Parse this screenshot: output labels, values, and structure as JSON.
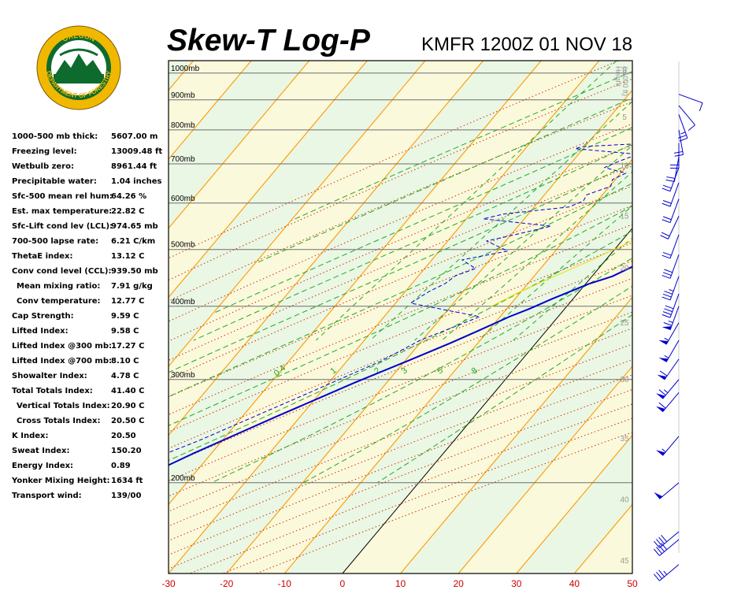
{
  "header": {
    "title": "Skew-T Log-P",
    "subtitle": "KMFR 1200Z 01 NOV 18",
    "logo_text_top": "OREGON",
    "logo_text_bottom": "DEPARTMENT OF FORESTRY"
  },
  "indices": [
    {
      "label": "1000-500 mb thick:",
      "value": "5607.00 m"
    },
    {
      "label": "Freezing level:",
      "value": "13009.48 ft"
    },
    {
      "label": "Wetbulb zero:",
      "value": "8961.44 ft"
    },
    {
      "label": "Precipitable water:",
      "value": "1.04 inches"
    },
    {
      "label": "Sfc-500 mean rel hum:",
      "value": "64.26 %"
    },
    {
      "label": "Est. max temperature:",
      "value": "22.82 C"
    },
    {
      "label": "Sfc-Lift cond lev (LCL):",
      "value": "974.65 mb"
    },
    {
      "label": "700-500 lapse rate:",
      "value": "6.21 C/km"
    },
    {
      "label": "ThetaE index:",
      "value": "13.12 C"
    },
    {
      "label": "Conv cond level (CCL):",
      "value": "939.50 mb"
    },
    {
      "label": "Mean mixing ratio:",
      "value": "7.91 g/kg",
      "indent": true
    },
    {
      "label": "Conv temperature:",
      "value": "12.77 C",
      "indent": true
    },
    {
      "label": "Cap Strength:",
      "value": "9.59 C"
    },
    {
      "label": "Lifted Index:",
      "value": "9.58 C"
    },
    {
      "label": "Lifted Index @300 mb:",
      "value": "17.27 C"
    },
    {
      "label": "Lifted Index @700 mb:",
      "value": "8.10 C"
    },
    {
      "label": "Showalter Index:",
      "value": "4.78 C"
    },
    {
      "label": "Total Totals Index:",
      "value": "41.40 C"
    },
    {
      "label": "Vertical Totals Index:",
      "value": "20.90 C",
      "indent": true
    },
    {
      "label": "Cross Totals Index:",
      "value": "20.50 C",
      "indent": true
    },
    {
      "label": "K Index:",
      "value": "20.50"
    },
    {
      "label": "Sweat Index:",
      "value": "150.20"
    },
    {
      "label": "Energy Index:",
      "value": "0.89"
    },
    {
      "label": "Yonker Mixing Height:",
      "value": "1634 ft"
    },
    {
      "label": "Transport wind:",
      "value": "139/00"
    }
  ],
  "chart_data": {
    "type": "line",
    "xlim": [
      -30,
      50
    ],
    "ylim_mb": [
      1050,
      140
    ],
    "x_ticks": [
      -30,
      -20,
      -10,
      0,
      10,
      20,
      30,
      40,
      50
    ],
    "pressure_levels": [
      1000,
      900,
      800,
      700,
      600,
      500,
      400,
      300,
      200
    ],
    "pressure_label_suffix": "mb",
    "height_axis_label": "Height\n(x1000 ft)",
    "height_ticks": [
      0,
      5,
      10,
      15,
      20,
      25,
      30,
      35,
      40,
      45,
      50
    ],
    "mixing_ratio_labels": [
      "0.4",
      "1",
      "2",
      "3",
      "5",
      "8"
    ],
    "mixing_ratio_values": [
      0.4,
      1,
      2,
      3,
      5,
      8
    ],
    "colors": {
      "temperature": "#0000cc",
      "dewpoint": "#0000cc",
      "parcel": "#e8e000",
      "isotherm": "#ff9900",
      "dry_adiabat": "#cc3300",
      "moist_adiabat": "#22aa22",
      "band_a": "#eaf7e4",
      "band_b": "#fbf9dc",
      "axis_tick_label": "#cc0000",
      "height_label": "#999999"
    },
    "series": [
      {
        "kind": "temperature",
        "points": [
          [
            999,
            15.0
          ],
          [
            960,
            15.6
          ],
          [
            935,
            17.1
          ],
          [
            920,
            17.9
          ],
          [
            895,
            20.6
          ],
          [
            876,
            21.6
          ],
          [
            859,
            20.8
          ],
          [
            836,
            19.2
          ],
          [
            815,
            19.4
          ],
          [
            790,
            19.0
          ],
          [
            775,
            18.4
          ],
          [
            750,
            21.3
          ],
          [
            730,
            24.5
          ],
          [
            711,
            24.7
          ],
          [
            689,
            24.7
          ],
          [
            661,
            23.0
          ],
          [
            636,
            21.5
          ],
          [
            612,
            19.6
          ],
          [
            593,
            18.1
          ],
          [
            566,
            15.9
          ],
          [
            548,
            13.9
          ],
          [
            517,
            10.9
          ],
          [
            494,
            8.1
          ],
          [
            470,
            5.9
          ],
          [
            450,
            3.5
          ],
          [
            437,
            0.6
          ],
          [
            412,
            -3.6
          ],
          [
            396,
            -6.1
          ],
          [
            384,
            -8.4
          ],
          [
            363,
            -11.8
          ],
          [
            346,
            -14.8
          ],
          [
            322,
            -19.7
          ],
          [
            296,
            -25.6
          ],
          [
            259,
            -34.2
          ],
          [
            224,
            -43.2
          ],
          [
            197,
            -50.4
          ],
          [
            162,
            -60.3
          ],
          [
            152,
            -52.6
          ],
          [
            145,
            -49.6
          ]
        ]
      },
      {
        "kind": "dewpoint",
        "points": [
          [
            999,
            14.3
          ],
          [
            960,
            15.2
          ],
          [
            935,
            16.6
          ],
          [
            920,
            17.2
          ],
          [
            895,
            20.0
          ],
          [
            880,
            19.7
          ],
          [
            860,
            19.0
          ],
          [
            840,
            17.1
          ],
          [
            815,
            17.1
          ],
          [
            790,
            16.6
          ],
          [
            774,
            15.4
          ],
          [
            764,
            -4.3
          ],
          [
            749,
            -20.4
          ],
          [
            743,
            -21.4
          ],
          [
            727,
            -9.8
          ],
          [
            706,
            -12.1
          ],
          [
            690,
            -13.6
          ],
          [
            675,
            -9.1
          ],
          [
            658,
            -10.5
          ],
          [
            641,
            -9.8
          ],
          [
            620,
            -12.7
          ],
          [
            605,
            -12.4
          ],
          [
            591,
            -14.0
          ],
          [
            575,
            -24.2
          ],
          [
            564,
            -27.1
          ],
          [
            548,
            -14.3
          ],
          [
            530,
            -19.3
          ],
          [
            517,
            -23.3
          ],
          [
            497,
            -18.2
          ],
          [
            480,
            -24.8
          ],
          [
            464,
            -21.2
          ],
          [
            451,
            -23.6
          ],
          [
            437,
            -24.3
          ],
          [
            424,
            -25.9
          ],
          [
            405,
            -27.4
          ],
          [
            384,
            -13.5
          ],
          [
            350,
            -20.4
          ],
          [
            322,
            -24.2
          ],
          [
            280,
            -33.0
          ],
          [
            236,
            -44.0
          ],
          [
            205,
            -54.5
          ],
          [
            175,
            -66.0
          ],
          [
            162,
            -64.2
          ],
          [
            152,
            -56.8
          ],
          [
            145,
            -54.0
          ]
        ]
      },
      {
        "kind": "parcel",
        "points": [
          [
            762,
            14.7
          ],
          [
            740,
            15.4
          ],
          [
            720,
            13.7
          ],
          [
            690,
            13.6
          ],
          [
            660,
            12.7
          ],
          [
            630,
            11.2
          ],
          [
            600,
            9.0
          ],
          [
            570,
            7.2
          ],
          [
            540,
            4.0
          ],
          [
            510,
            1.0
          ],
          [
            480,
            -2.4
          ],
          [
            450,
            -6.5
          ],
          [
            420,
            -10.6
          ],
          [
            400,
            -13.0
          ]
        ]
      }
    ],
    "wind_barbs": [
      {
        "pressure": 920,
        "direction": 110,
        "speed": 10
      },
      {
        "pressure": 880,
        "direction": 140,
        "speed": 10
      },
      {
        "pressure": 850,
        "direction": 160,
        "speed": 25
      },
      {
        "pressure": 800,
        "direction": 170,
        "speed": 20
      },
      {
        "pressure": 760,
        "direction": 180,
        "speed": 20
      },
      {
        "pressure": 720,
        "direction": 190,
        "speed": 20
      },
      {
        "pressure": 690,
        "direction": 200,
        "speed": 20
      },
      {
        "pressure": 650,
        "direction": 200,
        "speed": 20
      },
      {
        "pressure": 610,
        "direction": 200,
        "speed": 20
      },
      {
        "pressure": 570,
        "direction": 205,
        "speed": 20
      },
      {
        "pressure": 530,
        "direction": 200,
        "speed": 20
      },
      {
        "pressure": 490,
        "direction": 200,
        "speed": 30
      },
      {
        "pressure": 450,
        "direction": 200,
        "speed": 35
      },
      {
        "pressure": 420,
        "direction": 200,
        "speed": 40
      },
      {
        "pressure": 400,
        "direction": 200,
        "speed": 65
      },
      {
        "pressure": 375,
        "direction": 210,
        "speed": 55
      },
      {
        "pressure": 350,
        "direction": 210,
        "speed": 55
      },
      {
        "pressure": 325,
        "direction": 215,
        "speed": 60
      },
      {
        "pressure": 300,
        "direction": 220,
        "speed": 65
      },
      {
        "pressure": 285,
        "direction": 220,
        "speed": 60
      },
      {
        "pressure": 240,
        "direction": 220,
        "speed": 55
      },
      {
        "pressure": 200,
        "direction": 230,
        "speed": 50
      },
      {
        "pressure": 165,
        "direction": 230,
        "speed": 40
      },
      {
        "pressure": 160,
        "direction": 230,
        "speed": 40
      },
      {
        "pressure": 145,
        "direction": 230,
        "speed": 35
      }
    ]
  }
}
